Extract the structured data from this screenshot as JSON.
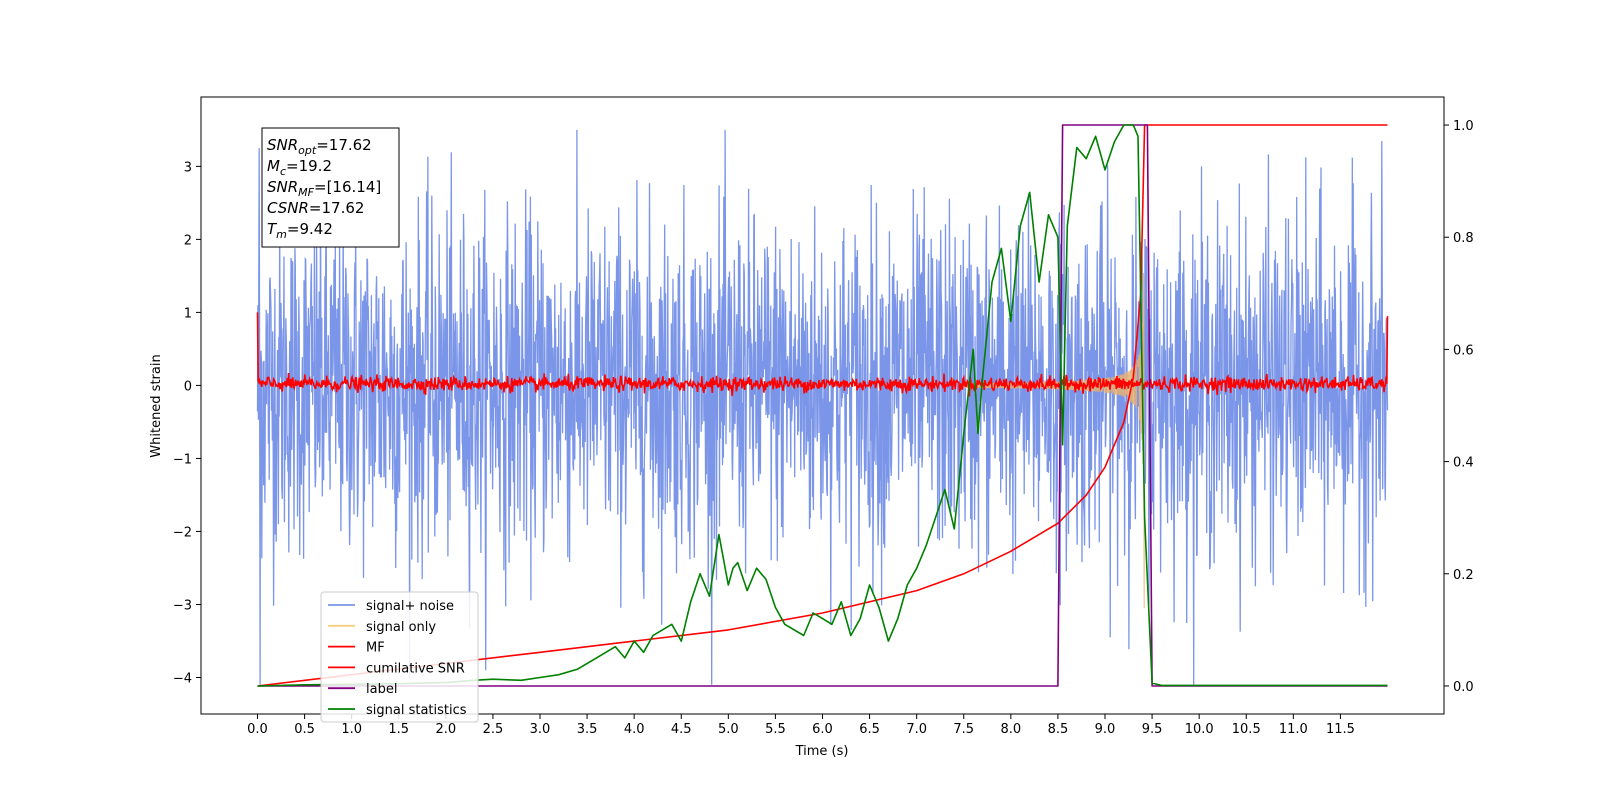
{
  "chart_data": {
    "type": "line",
    "xlabel": "Time (s)",
    "ylabel": "Whitened strain",
    "xlim": [
      -0.6,
      12.6
    ],
    "ylim": [
      -4.5,
      3.95
    ],
    "y2lim": [
      -0.05,
      1.05
    ],
    "x_ticks": [
      "0.0",
      "0.5",
      "1.0",
      "1.5",
      "2.0",
      "2.5",
      "3.0",
      "3.5",
      "4.0",
      "4.5",
      "5.0",
      "5.5",
      "6.0",
      "6.5",
      "7.0",
      "7.5",
      "8.0",
      "8.5",
      "9.0",
      "9.5",
      "10.0",
      "10.5",
      "11.0",
      "11.5"
    ],
    "y_ticks": [
      "3",
      "2",
      "1",
      "0",
      "−1",
      "−2",
      "−3",
      "−4"
    ],
    "y2_ticks": [
      "1.0",
      "0.8",
      "0.6",
      "0.4",
      "0.2",
      "0.0"
    ],
    "info_box": [
      {
        "sym": "SNR",
        "sub": "opt",
        "rest": "=17.62"
      },
      {
        "sym": "M",
        "sub": "c",
        "rest": "=19.2"
      },
      {
        "sym": "SNR",
        "sub": "MF",
        "rest": "=[16.14]"
      },
      {
        "sym": "CSNR",
        "sub": "",
        "rest": "=17.62"
      },
      {
        "sym": "T",
        "sub": "m",
        "rest": "=9.42"
      }
    ],
    "legend": {
      "placement": "lower-left",
      "entries": [
        {
          "label": "signal+ noise",
          "color": "#7b96e8"
        },
        {
          "label": "signal only",
          "color": "#f5cf7e"
        },
        {
          "label": "MF",
          "color": "#ff0000"
        },
        {
          "label": "cumilative SNR",
          "color": "#ff0000"
        },
        {
          "label": "label",
          "color": "#800080"
        },
        {
          "label": "signal statistics",
          "color": "#008000"
        }
      ]
    },
    "series": [
      {
        "name": "signal+ noise",
        "axis": "left",
        "color": "#7b96e8",
        "description_range": [
          -4.1,
          3.5
        ],
        "x_range": [
          0,
          12
        ]
      },
      {
        "name": "signal only",
        "axis": "left",
        "color": "#e8b070",
        "x_range": [
          7.5,
          9.42
        ],
        "peak_amplitude": 1.5
      },
      {
        "name": "MF",
        "axis": "left",
        "color": "#ff0000",
        "x_range": [
          0,
          12
        ],
        "endpoints": [
          1.0,
          0.95
        ]
      },
      {
        "name": "cumilative SNR",
        "axis": "right",
        "color": "#ff0000",
        "x": [
          0,
          1,
          2,
          3,
          4,
          5,
          6,
          7,
          7.5,
          8,
          8.5,
          8.8,
          9.0,
          9.2,
          9.3,
          9.38,
          9.42,
          12
        ],
        "y": [
          0.0,
          0.02,
          0.04,
          0.06,
          0.08,
          0.1,
          0.13,
          0.17,
          0.2,
          0.24,
          0.29,
          0.34,
          0.39,
          0.47,
          0.55,
          0.7,
          1.0,
          1.0
        ]
      },
      {
        "name": "label",
        "axis": "right",
        "color": "#800080",
        "x": [
          0,
          8.5,
          8.55,
          9.45,
          9.5,
          12
        ],
        "y": [
          0,
          0,
          1,
          1,
          0,
          0
        ]
      },
      {
        "name": "signal statistics",
        "axis": "right",
        "color": "#008000",
        "x": [
          0,
          0.5,
          1,
          1.5,
          2,
          2.3,
          2.5,
          2.8,
          3,
          3.2,
          3.4,
          3.6,
          3.8,
          3.9,
          4,
          4.1,
          4.2,
          4.4,
          4.5,
          4.6,
          4.7,
          4.8,
          4.9,
          5,
          5.05,
          5.1,
          5.2,
          5.3,
          5.4,
          5.5,
          5.6,
          5.8,
          5.9,
          6,
          6.1,
          6.2,
          6.3,
          6.4,
          6.5,
          6.6,
          6.7,
          6.8,
          6.9,
          7,
          7.1,
          7.2,
          7.3,
          7.4,
          7.5,
          7.6,
          7.65,
          7.7,
          7.8,
          7.9,
          8,
          8.1,
          8.2,
          8.3,
          8.4,
          8.5,
          8.55,
          8.6,
          8.7,
          8.8,
          8.9,
          9,
          9.1,
          9.2,
          9.3,
          9.35,
          9.42,
          9.5,
          9.6,
          12
        ],
        "y": [
          0,
          0.002,
          0.003,
          0.004,
          0.006,
          0.01,
          0.012,
          0.01,
          0.015,
          0.02,
          0.03,
          0.05,
          0.07,
          0.05,
          0.08,
          0.06,
          0.09,
          0.11,
          0.08,
          0.15,
          0.2,
          0.16,
          0.27,
          0.18,
          0.21,
          0.22,
          0.17,
          0.21,
          0.19,
          0.14,
          0.11,
          0.09,
          0.13,
          0.12,
          0.11,
          0.15,
          0.09,
          0.12,
          0.18,
          0.14,
          0.08,
          0.12,
          0.18,
          0.21,
          0.25,
          0.3,
          0.35,
          0.28,
          0.45,
          0.6,
          0.45,
          0.55,
          0.72,
          0.78,
          0.65,
          0.82,
          0.88,
          0.72,
          0.84,
          0.8,
          0.43,
          0.82,
          0.96,
          0.94,
          0.98,
          0.92,
          0.97,
          1.0,
          1.0,
          0.98,
          0.3,
          0.005,
          0.001,
          0.001
        ]
      }
    ]
  }
}
